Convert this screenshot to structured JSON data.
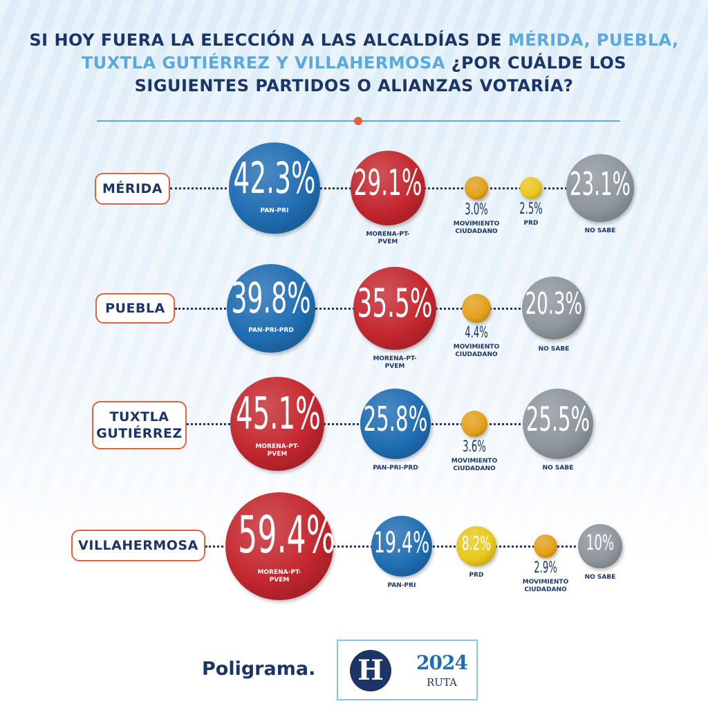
{
  "header": {
    "title_parts": [
      "SI HOY FUERA LA ELECCIÓN A LAS ALCALDÍAS DE ",
      "MÉRIDA, PUEBLA, TUXTLA GUTIÉRREZ Y VILLAHERMOSA",
      " ¿POR CUÁLDE LOS SIGUIENTES PARTIDOS O ALIANZAS VOTARÍA?"
    ]
  },
  "chart_data": [
    {
      "type": "bubble",
      "title": "MÉRIDA",
      "categories": [
        "PAN-PRI",
        "MORENA-PT-PVEM",
        "MOVIMIENTO CIUDADANO",
        "PRD",
        "NO SABE"
      ],
      "values": [
        42.3,
        29.1,
        3.0,
        2.5,
        23.1
      ],
      "value_labels": [
        "42.3%",
        "29.1%",
        "3.0%",
        "2.5%",
        "23.1%"
      ],
      "colors": [
        "#1f6db3",
        "#c3262e",
        "#e3a21a",
        "#e9c81c",
        "#8e979e"
      ]
    },
    {
      "type": "bubble",
      "title": "PUEBLA",
      "categories": [
        "PAN-PRI-PRD",
        "MORENA-PT-PVEM",
        "MOVIMIENTO CIUDADANO",
        "NO SABE"
      ],
      "values": [
        39.8,
        35.5,
        4.4,
        20.3
      ],
      "value_labels": [
        "39.8%",
        "35.5%",
        "4.4%",
        "20.3%"
      ],
      "colors": [
        "#1f6db3",
        "#c3262e",
        "#e3a21a",
        "#8e979e"
      ]
    },
    {
      "type": "bubble",
      "title": "TUXTLA GUTIÉRREZ",
      "categories": [
        "MORENA-PT-PVEM",
        "PAN-PRI-PRD",
        "MOVIMIENTO CIUDADANO",
        "NO SABE"
      ],
      "values": [
        45.1,
        25.8,
        3.6,
        25.5
      ],
      "value_labels": [
        "45.1%",
        "25.8%",
        "3.6%",
        "25.5%"
      ],
      "colors": [
        "#c3262e",
        "#1f6db3",
        "#e3a21a",
        "#8e979e"
      ]
    },
    {
      "type": "bubble",
      "title": "VILLAHERMOSA",
      "categories": [
        "MORENA-PT-PVEM",
        "PAN-PRI",
        "PRD",
        "MOVIMIENTO CIUDADANO",
        "NO SABE"
      ],
      "values": [
        59.4,
        19.4,
        8.2,
        2.9,
        10
      ],
      "value_labels": [
        "59.4%",
        "19.4%",
        "8.2%",
        "2.9%",
        "10%"
      ],
      "colors": [
        "#c3262e",
        "#1f6db3",
        "#e9c81c",
        "#e3a21a",
        "#8e979e"
      ]
    }
  ],
  "footer": {
    "brand": "Poligrama.",
    "logo": "H",
    "ruta_year": "2024",
    "ruta": "RUTA"
  }
}
